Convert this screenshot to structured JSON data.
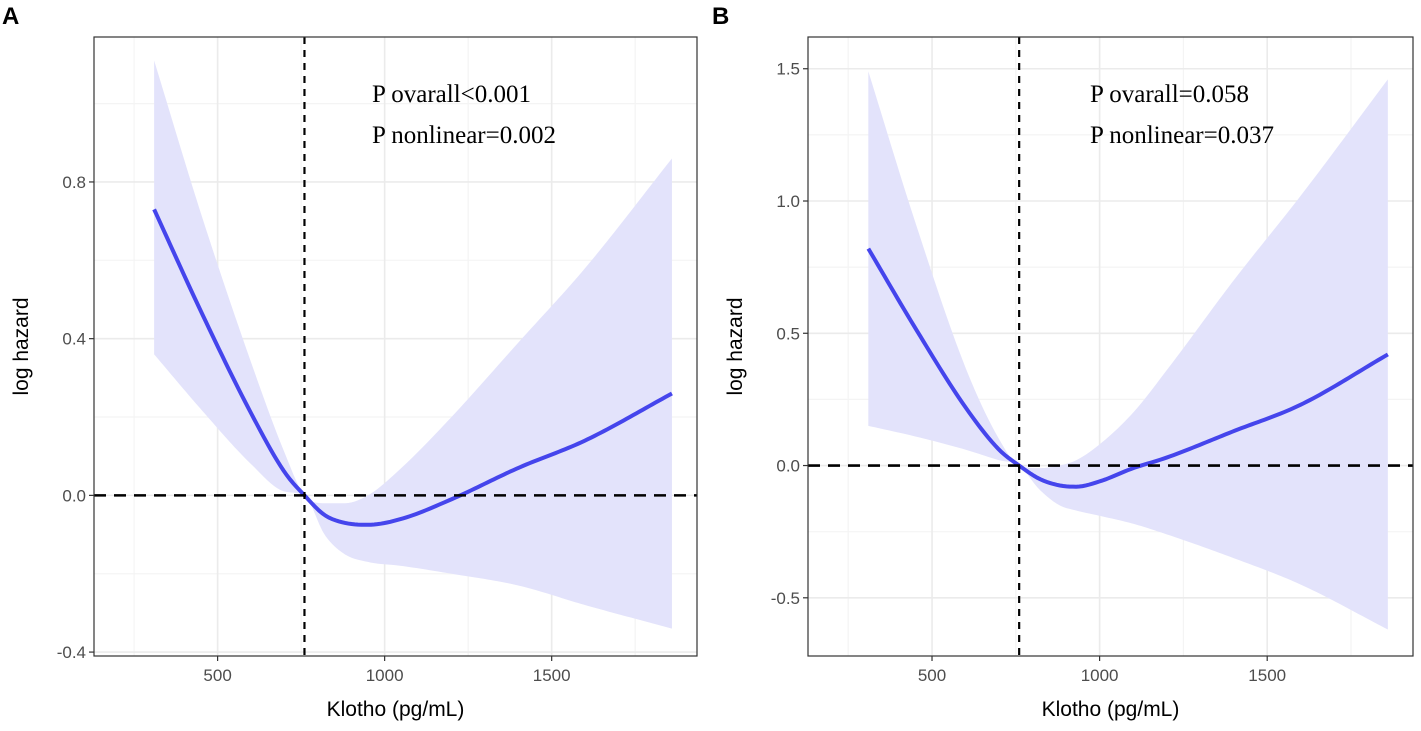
{
  "chart_data": [
    {
      "panel": "A",
      "type": "line",
      "xlabel": "Klotho (pg/mL)",
      "ylabel": "log hazard",
      "xlim": [
        130,
        1935
      ],
      "ylim": [
        -0.41,
        1.17
      ],
      "x_ticks": [
        500,
        1000,
        1500
      ],
      "y_ticks": [
        -0.4,
        0.0,
        0.4,
        0.8
      ],
      "y_tick_labels": [
        "-0.4",
        "0.0",
        "0.4",
        "0.8"
      ],
      "ref_x": 760,
      "ref_y": 0,
      "annotations": [
        "P ovarall<0.001",
        "P nonlinear=0.002"
      ],
      "series": [
        {
          "name": "estimate",
          "x": [
            310,
            450,
            600,
            700,
            760,
            820,
            880,
            950,
            1050,
            1200,
            1400,
            1600,
            1860
          ],
          "y": [
            0.73,
            0.47,
            0.21,
            0.06,
            0.0,
            -0.05,
            -0.07,
            -0.075,
            -0.06,
            -0.01,
            0.07,
            0.14,
            0.26
          ]
        },
        {
          "name": "ci_upper",
          "x": [
            310,
            450,
            600,
            700,
            760,
            820,
            880,
            950,
            1050,
            1200,
            1400,
            1600,
            1860
          ],
          "y": [
            1.11,
            0.72,
            0.34,
            0.11,
            0.0,
            -0.02,
            -0.02,
            0.0,
            0.07,
            0.2,
            0.39,
            0.58,
            0.86
          ]
        },
        {
          "name": "ci_lower",
          "x": [
            310,
            450,
            600,
            700,
            760,
            820,
            880,
            950,
            1050,
            1200,
            1400,
            1600,
            1860
          ],
          "y": [
            0.36,
            0.22,
            0.08,
            0.01,
            0.0,
            -0.1,
            -0.15,
            -0.17,
            -0.18,
            -0.2,
            -0.23,
            -0.28,
            -0.34
          ]
        }
      ]
    },
    {
      "panel": "B",
      "type": "line",
      "xlabel": "Klotho (pg/mL)",
      "ylabel": "log hazard",
      "xlim": [
        130,
        1935
      ],
      "ylim": [
        -0.72,
        1.62
      ],
      "x_ticks": [
        500,
        1000,
        1500
      ],
      "y_ticks": [
        -0.5,
        0.0,
        0.5,
        1.0,
        1.5
      ],
      "y_tick_labels": [
        "-0.5",
        "0.0",
        "0.5",
        "1.0",
        "1.5"
      ],
      "ref_x": 760,
      "ref_y": 0,
      "annotations": [
        "P ovarall=0.058",
        "P nonlinear=0.037"
      ],
      "series": [
        {
          "name": "estimate",
          "x": [
            310,
            450,
            600,
            700,
            760,
            820,
            880,
            930,
            1000,
            1100,
            1200,
            1400,
            1600,
            1860
          ],
          "y": [
            0.82,
            0.52,
            0.22,
            0.06,
            0.0,
            -0.05,
            -0.075,
            -0.08,
            -0.06,
            -0.01,
            0.03,
            0.13,
            0.23,
            0.42
          ]
        },
        {
          "name": "ci_upper",
          "x": [
            310,
            450,
            600,
            700,
            760,
            820,
            880,
            930,
            1000,
            1100,
            1200,
            1400,
            1600,
            1860
          ],
          "y": [
            1.49,
            0.92,
            0.37,
            0.1,
            0.0,
            -0.01,
            0.0,
            0.02,
            0.08,
            0.2,
            0.36,
            0.7,
            1.02,
            1.46
          ]
        },
        {
          "name": "ci_lower",
          "x": [
            310,
            450,
            600,
            700,
            760,
            820,
            880,
            930,
            1000,
            1100,
            1200,
            1400,
            1600,
            1860
          ],
          "y": [
            0.15,
            0.11,
            0.06,
            0.02,
            0.0,
            -0.09,
            -0.15,
            -0.17,
            -0.19,
            -0.22,
            -0.26,
            -0.35,
            -0.45,
            -0.62
          ]
        }
      ]
    }
  ],
  "colors": {
    "line": "#4545ec",
    "ribbon": "#e3e3fb",
    "grid_major": "#ebebeb",
    "grid_minor": "#f4f4f4",
    "border": "#333333",
    "reference": "#000000"
  }
}
